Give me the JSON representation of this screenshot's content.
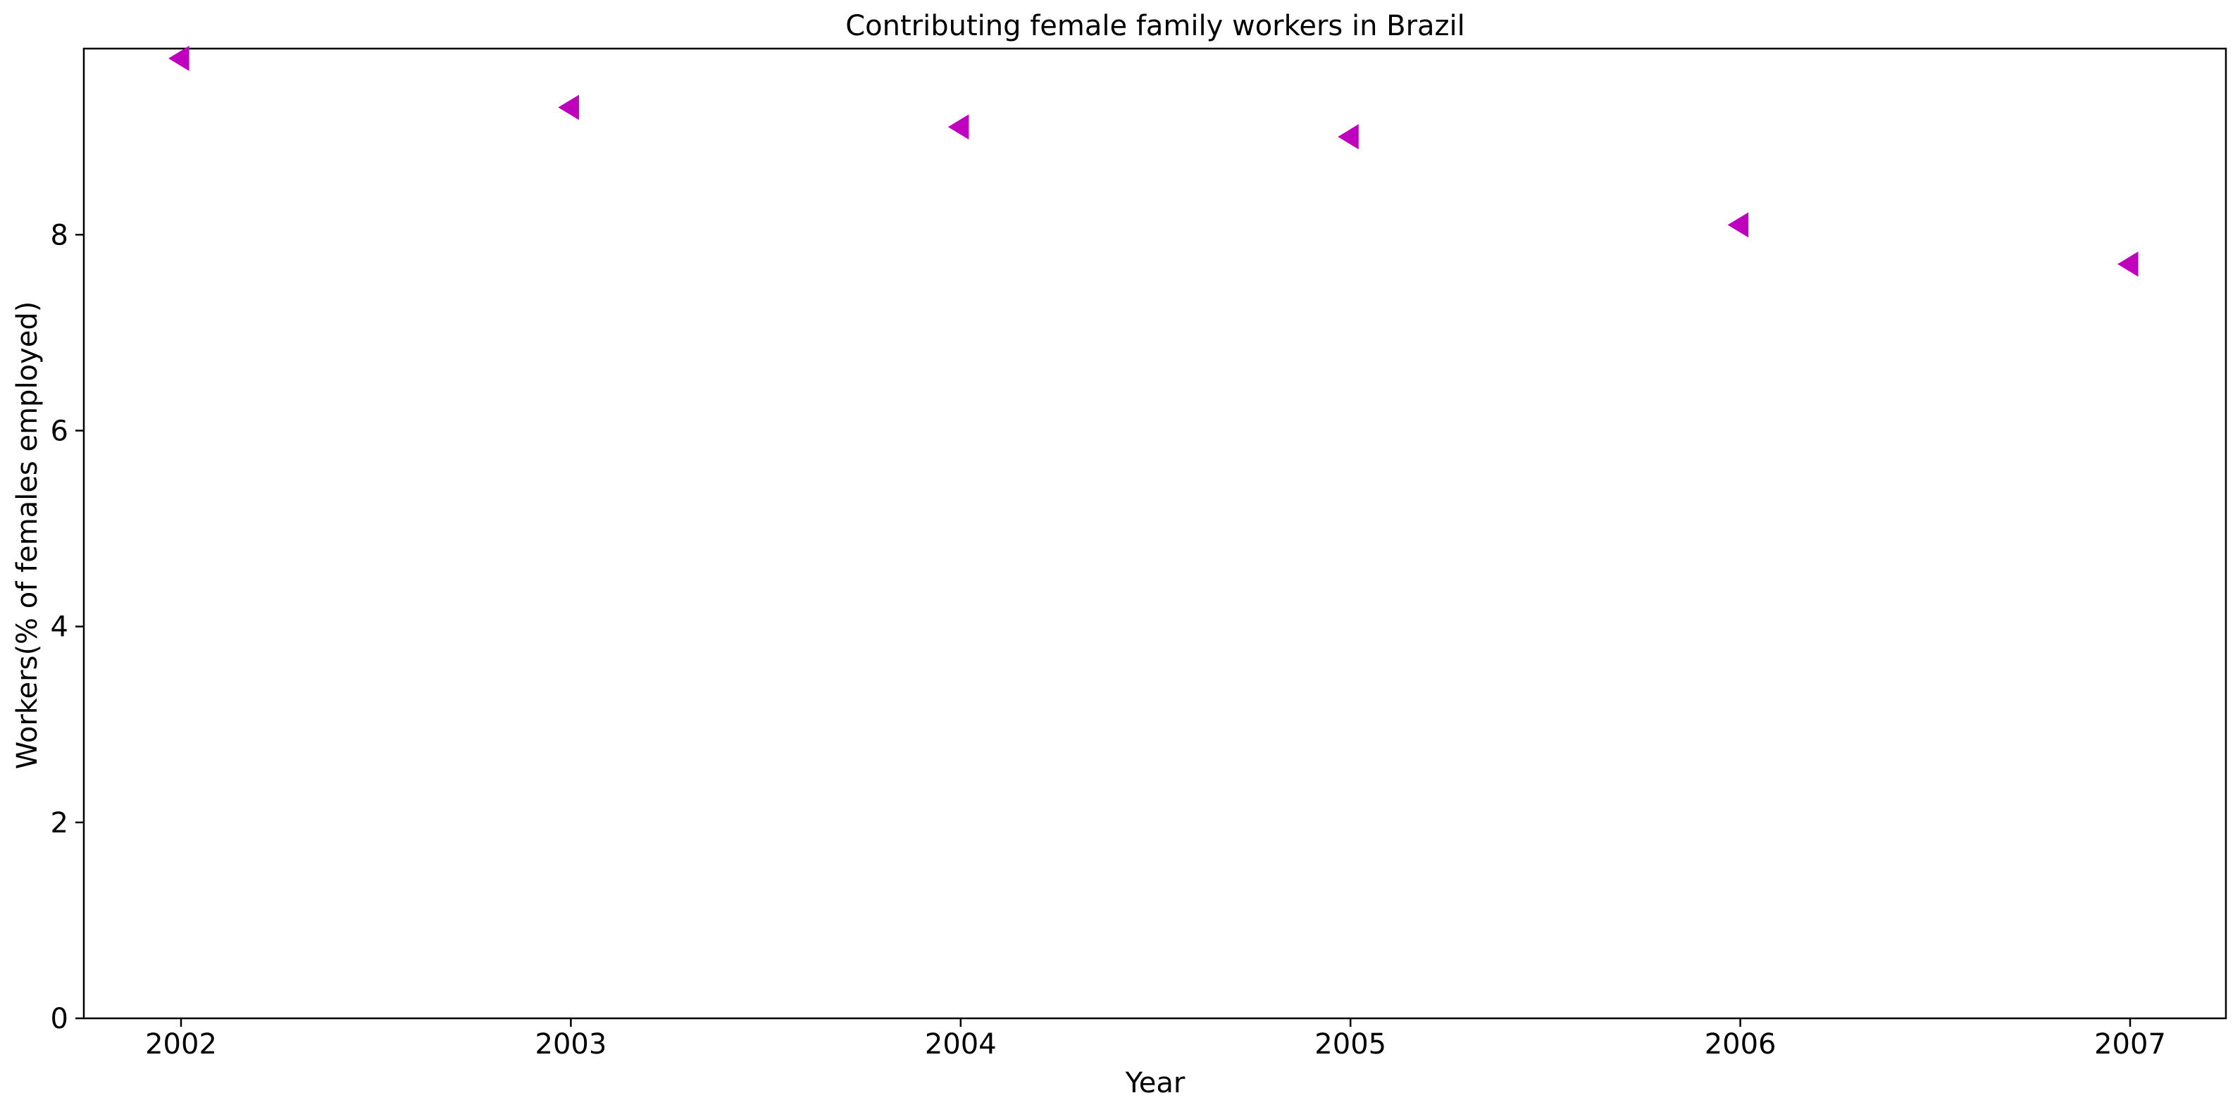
{
  "chart_data": {
    "type": "scatter",
    "title": "Contributing female family workers in Brazil",
    "xlabel": "Year",
    "ylabel": "Workers(% of females employed)",
    "x": [
      "2002",
      "2003",
      "2004",
      "2005",
      "2006",
      "2007"
    ],
    "series": [
      {
        "values": [
          9.8,
          9.3,
          9.1,
          9.0,
          8.1,
          7.7
        ],
        "color": "#bf00bf",
        "marker": "triangle-left"
      }
    ],
    "x_ticks": [
      "2002",
      "2003",
      "2004",
      "2005",
      "2006",
      "2007"
    ],
    "y_ticks": [
      "0",
      "2",
      "4",
      "6",
      "8"
    ],
    "ylim": [
      0,
      9.9
    ],
    "grid": false,
    "legend": "none"
  }
}
